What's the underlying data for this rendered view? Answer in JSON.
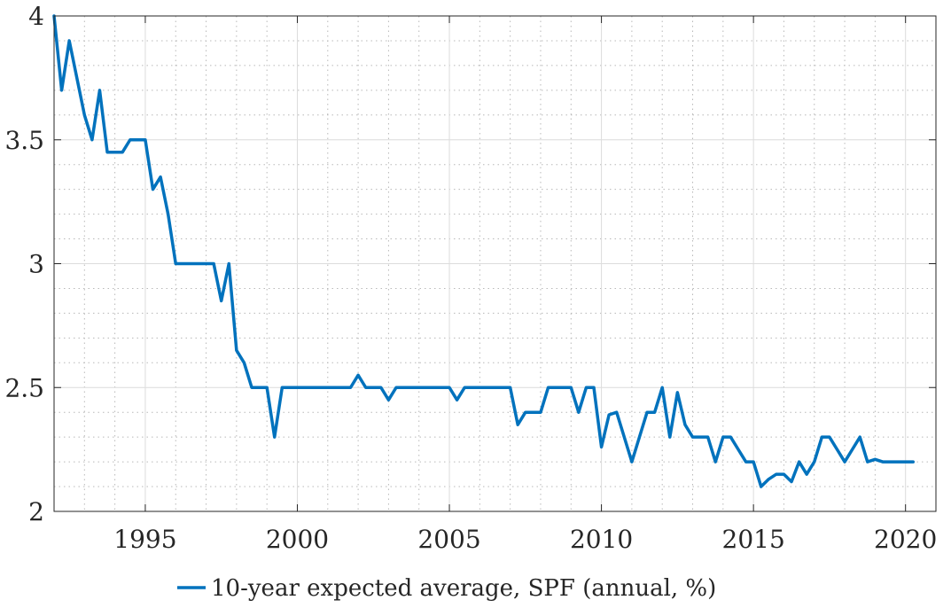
{
  "chart_data": {
    "type": "line",
    "title": "",
    "xlabel": "",
    "ylabel": "",
    "xlim": [
      1992.0,
      2021.0
    ],
    "ylim": [
      2.0,
      4.0
    ],
    "x_ticks": [
      1995,
      2000,
      2005,
      2010,
      2015,
      2020
    ],
    "x_tick_labels": [
      "1995",
      "2000",
      "2005",
      "2010",
      "2015",
      "2020"
    ],
    "y_ticks": [
      2,
      2.5,
      3,
      3.5,
      4
    ],
    "y_tick_labels": [
      "2",
      "2.5",
      "3",
      "3.5",
      "4"
    ],
    "grid": "major and minor dotted",
    "legend_position": "bottom-center",
    "series": [
      {
        "name": "10-year expected average, SPF (annual, %)",
        "color": "#0072BD",
        "points": [
          [
            1992.0,
            4.0
          ],
          [
            1992.25,
            3.7
          ],
          [
            1992.5,
            3.9
          ],
          [
            1992.75,
            3.75
          ],
          [
            1993.0,
            3.6
          ],
          [
            1993.25,
            3.5
          ],
          [
            1993.5,
            3.7
          ],
          [
            1993.75,
            3.45
          ],
          [
            1994.0,
            3.45
          ],
          [
            1994.25,
            3.45
          ],
          [
            1994.5,
            3.5
          ],
          [
            1994.75,
            3.5
          ],
          [
            1995.0,
            3.5
          ],
          [
            1995.25,
            3.3
          ],
          [
            1995.5,
            3.35
          ],
          [
            1995.75,
            3.2
          ],
          [
            1996.0,
            3.0
          ],
          [
            1996.25,
            3.0
          ],
          [
            1996.5,
            3.0
          ],
          [
            1996.75,
            3.0
          ],
          [
            1997.0,
            3.0
          ],
          [
            1997.25,
            3.0
          ],
          [
            1997.5,
            2.85
          ],
          [
            1997.75,
            3.0
          ],
          [
            1998.0,
            2.65
          ],
          [
            1998.25,
            2.6
          ],
          [
            1998.5,
            2.5
          ],
          [
            1998.75,
            2.5
          ],
          [
            1999.0,
            2.5
          ],
          [
            1999.25,
            2.3
          ],
          [
            1999.5,
            2.5
          ],
          [
            1999.75,
            2.5
          ],
          [
            2000.0,
            2.5
          ],
          [
            2001.0,
            2.5
          ],
          [
            2001.75,
            2.5
          ],
          [
            2002.0,
            2.55
          ],
          [
            2002.25,
            2.5
          ],
          [
            2002.5,
            2.5
          ],
          [
            2002.75,
            2.5
          ],
          [
            2003.0,
            2.45
          ],
          [
            2003.25,
            2.5
          ],
          [
            2004.0,
            2.5
          ],
          [
            2005.0,
            2.5
          ],
          [
            2005.25,
            2.45
          ],
          [
            2005.5,
            2.5
          ],
          [
            2006.0,
            2.5
          ],
          [
            2006.5,
            2.5
          ],
          [
            2007.0,
            2.5
          ],
          [
            2007.25,
            2.35
          ],
          [
            2007.5,
            2.4
          ],
          [
            2008.0,
            2.4
          ],
          [
            2008.25,
            2.5
          ],
          [
            2008.75,
            2.5
          ],
          [
            2009.0,
            2.5
          ],
          [
            2009.25,
            2.4
          ],
          [
            2009.5,
            2.5
          ],
          [
            2009.75,
            2.5
          ],
          [
            2010.0,
            2.26
          ],
          [
            2010.25,
            2.39
          ],
          [
            2010.5,
            2.4
          ],
          [
            2010.75,
            2.3
          ],
          [
            2011.0,
            2.2
          ],
          [
            2011.25,
            2.3
          ],
          [
            2011.5,
            2.4
          ],
          [
            2011.75,
            2.4
          ],
          [
            2012.0,
            2.5
          ],
          [
            2012.25,
            2.3
          ],
          [
            2012.5,
            2.48
          ],
          [
            2012.75,
            2.35
          ],
          [
            2013.0,
            2.3
          ],
          [
            2013.25,
            2.3
          ],
          [
            2013.5,
            2.3
          ],
          [
            2013.75,
            2.2
          ],
          [
            2014.0,
            2.3
          ],
          [
            2014.25,
            2.3
          ],
          [
            2014.5,
            2.25
          ],
          [
            2014.75,
            2.2
          ],
          [
            2015.0,
            2.2
          ],
          [
            2015.25,
            2.1
          ],
          [
            2015.5,
            2.13
          ],
          [
            2015.75,
            2.15
          ],
          [
            2016.0,
            2.15
          ],
          [
            2016.25,
            2.12
          ],
          [
            2016.5,
            2.2
          ],
          [
            2016.75,
            2.15
          ],
          [
            2017.0,
            2.2
          ],
          [
            2017.25,
            2.3
          ],
          [
            2017.5,
            2.3
          ],
          [
            2017.75,
            2.25
          ],
          [
            2018.0,
            2.2
          ],
          [
            2018.25,
            2.25
          ],
          [
            2018.5,
            2.3
          ],
          [
            2018.75,
            2.2
          ],
          [
            2019.0,
            2.21
          ],
          [
            2019.25,
            2.2
          ],
          [
            2019.5,
            2.2
          ],
          [
            2019.75,
            2.2
          ],
          [
            2020.0,
            2.2
          ],
          [
            2020.25,
            2.2
          ]
        ]
      }
    ]
  }
}
